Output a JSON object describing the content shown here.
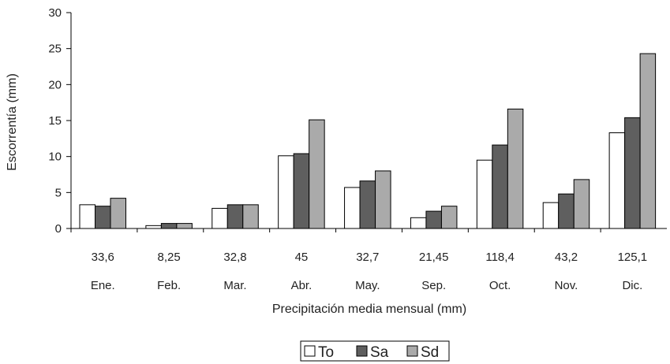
{
  "chart_data": {
    "type": "bar",
    "ylabel": "Escorrentía (mm)",
    "xlabel": "Precipitación media mensual (mm)",
    "ylim": [
      0,
      30
    ],
    "yticks": [
      0,
      5,
      10,
      15,
      20,
      25,
      30
    ],
    "grid": false,
    "legend_position": "bottom-center",
    "precipitation_labels": [
      "33,6",
      "8,25",
      "32,8",
      "45",
      "32,7",
      "21,45",
      "118,4",
      "43,2",
      "125,1"
    ],
    "categories": [
      "Ene.",
      "Feb.",
      "Mar.",
      "Abr.",
      "May.",
      "Sep.",
      "Oct.",
      "Nov.",
      "Dic."
    ],
    "series": [
      {
        "name": "To",
        "color": "#ffffff",
        "values": [
          3.3,
          0.4,
          2.8,
          10.1,
          5.7,
          1.5,
          9.5,
          3.6,
          13.3
        ]
      },
      {
        "name": "Sa",
        "color": "#5f5f5f",
        "values": [
          3.1,
          0.7,
          3.3,
          10.4,
          6.6,
          2.4,
          11.6,
          4.8,
          15.4
        ]
      },
      {
        "name": "Sd",
        "color": "#aaaaaa",
        "values": [
          4.2,
          0.7,
          3.3,
          15.1,
          8.0,
          3.1,
          16.6,
          6.8,
          24.3
        ]
      }
    ]
  }
}
